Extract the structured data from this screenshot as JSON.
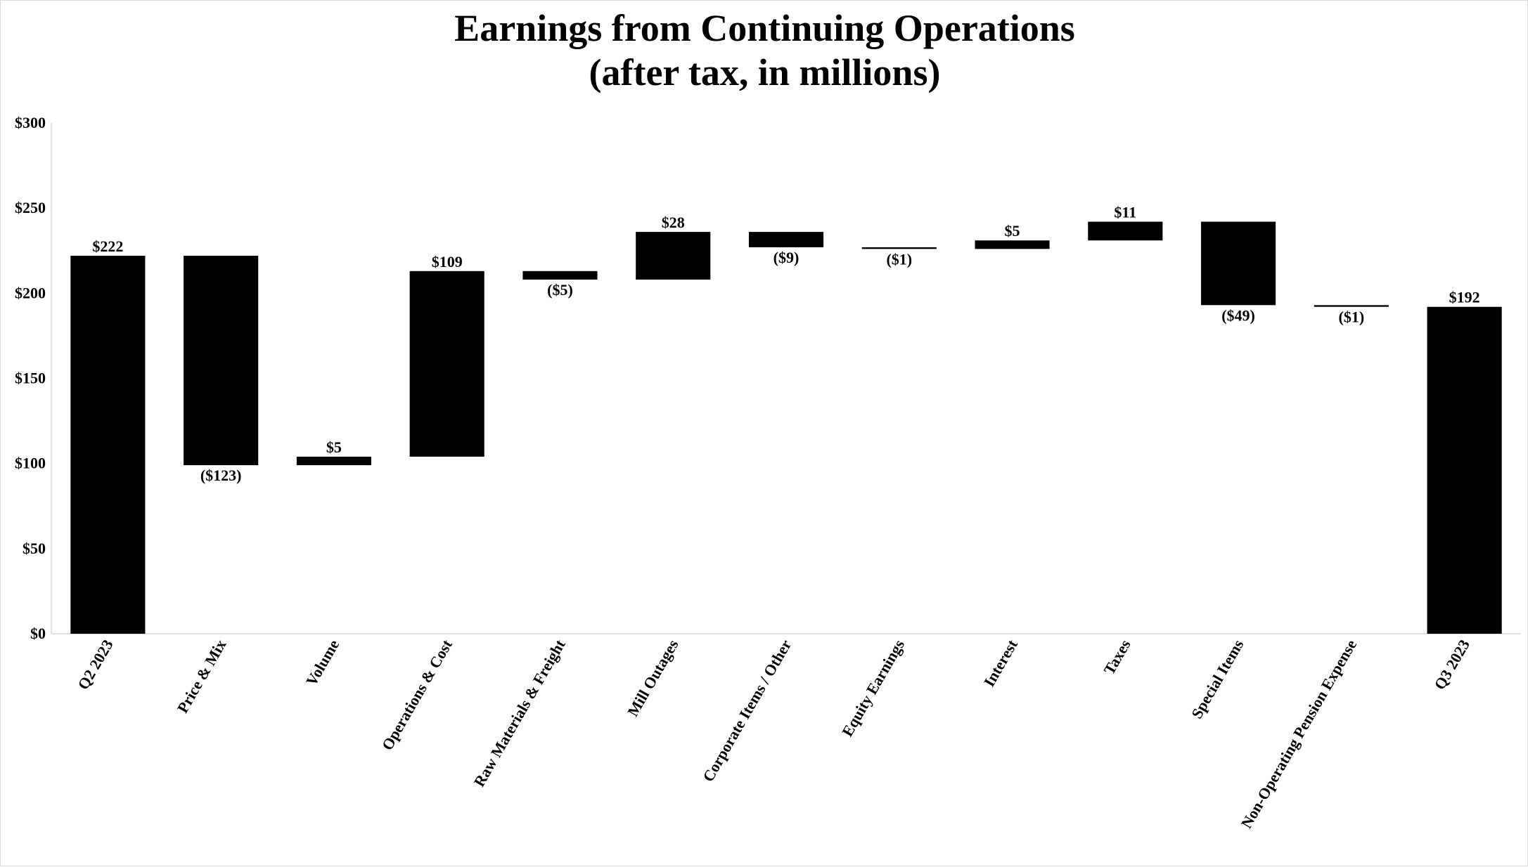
{
  "chart_data": {
    "type": "bar",
    "subtype": "waterfall",
    "title_lines": [
      "Earnings from Continuing Operations",
      "(after tax, in millions)"
    ],
    "xlabel": "",
    "ylabel": "",
    "ylim": [
      0,
      300
    ],
    "yticks": [
      0,
      50,
      100,
      150,
      200,
      250,
      300
    ],
    "ytick_labels": [
      "$0",
      "$50",
      "$100",
      "$150",
      "$200",
      "$250",
      "$300"
    ],
    "grid": false,
    "legend": "none",
    "bar_color": "#000000",
    "categories": [
      "Q2 2023",
      "Price & Mix",
      "Volume",
      "Operations & Cost",
      "Raw Materials & Freight",
      "Mill Outages",
      "Corporate Items / Other",
      "Equity Earnings",
      "Interest",
      "Taxes",
      "Special Items",
      "Non-Operating Pension Expense",
      "Q3 2023"
    ],
    "values": [
      222,
      -123,
      5,
      109,
      -5,
      28,
      -9,
      -1,
      5,
      11,
      -49,
      -1,
      192
    ],
    "kinds": [
      "total",
      "delta",
      "delta",
      "delta",
      "delta",
      "delta",
      "delta",
      "delta",
      "delta",
      "delta",
      "delta",
      "delta",
      "total"
    ],
    "data_labels": [
      "$222",
      "($123)",
      "$5",
      "$109",
      "($5)",
      "$28",
      "($9)",
      "($1)",
      "$5",
      "$11",
      "($49)",
      "($1)",
      "$192"
    ]
  }
}
